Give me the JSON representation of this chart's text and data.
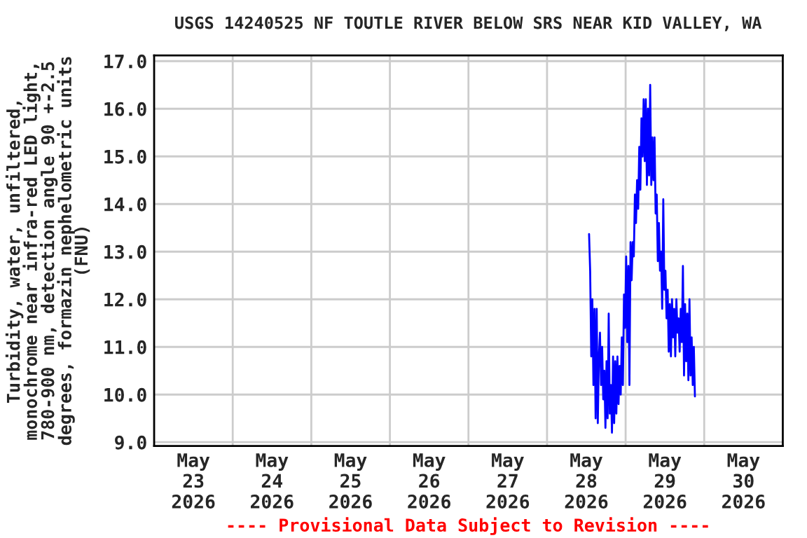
{
  "chart_data": {
    "type": "line",
    "title": "USGS 14240525 NF TOUTLE RIVER BELOW SRS NEAR KID VALLEY, WA",
    "ylabel": "Turbidity, water, unfiltered,\nmonochrome near infra-red LED light,\n780-900 nm, detection angle 90 +-2.5\ndegrees, formazin nephelometric units\n(FNU)",
    "annotations": [
      "---- Provisional Data Subject to Revision ----"
    ],
    "x": [
      "2026-05-28T12:50",
      "2026-05-28T13:10",
      "2026-05-28T13:30",
      "2026-05-28T13:50",
      "2026-05-28T14:10",
      "2026-05-28T14:30",
      "2026-05-28T14:50",
      "2026-05-28T15:10",
      "2026-05-28T15:30",
      "2026-05-28T15:50",
      "2026-05-28T16:10",
      "2026-05-28T16:30",
      "2026-05-28T16:50",
      "2026-05-28T17:10",
      "2026-05-28T17:30",
      "2026-05-28T17:50",
      "2026-05-28T18:10",
      "2026-05-28T18:30",
      "2026-05-28T18:50",
      "2026-05-28T19:10",
      "2026-05-28T19:30",
      "2026-05-28T19:50",
      "2026-05-28T20:10",
      "2026-05-28T20:30",
      "2026-05-28T20:50",
      "2026-05-28T21:10",
      "2026-05-28T21:30",
      "2026-05-28T21:50",
      "2026-05-28T22:10",
      "2026-05-28T22:30",
      "2026-05-28T22:50",
      "2026-05-28T23:10",
      "2026-05-28T23:30",
      "2026-05-28T23:50",
      "2026-05-29T00:10",
      "2026-05-29T00:30",
      "2026-05-29T00:50",
      "2026-05-29T01:10",
      "2026-05-29T01:30",
      "2026-05-29T01:50",
      "2026-05-29T02:10",
      "2026-05-29T02:30",
      "2026-05-29T02:50",
      "2026-05-29T03:10",
      "2026-05-29T03:30",
      "2026-05-29T03:50",
      "2026-05-29T04:10",
      "2026-05-29T04:30",
      "2026-05-29T04:50",
      "2026-05-29T05:10",
      "2026-05-29T05:30",
      "2026-05-29T05:50",
      "2026-05-29T06:10",
      "2026-05-29T06:30",
      "2026-05-29T06:50",
      "2026-05-29T07:10",
      "2026-05-29T07:30",
      "2026-05-29T07:50",
      "2026-05-29T08:10",
      "2026-05-29T08:30",
      "2026-05-29T08:50",
      "2026-05-29T09:10",
      "2026-05-29T09:30",
      "2026-05-29T09:50",
      "2026-05-29T10:10",
      "2026-05-29T10:30",
      "2026-05-29T10:50",
      "2026-05-29T11:10",
      "2026-05-29T11:30",
      "2026-05-29T11:50",
      "2026-05-29T12:10",
      "2026-05-29T12:30",
      "2026-05-29T12:50",
      "2026-05-29T13:10",
      "2026-05-29T13:30",
      "2026-05-29T13:50",
      "2026-05-29T14:10",
      "2026-05-29T14:30",
      "2026-05-29T14:50",
      "2026-05-29T15:10",
      "2026-05-29T15:30",
      "2026-05-29T15:50",
      "2026-05-29T16:10",
      "2026-05-29T16:30",
      "2026-05-29T16:50",
      "2026-05-29T17:10",
      "2026-05-29T17:30",
      "2026-05-29T17:50",
      "2026-05-29T18:10",
      "2026-05-29T18:30",
      "2026-05-29T18:50",
      "2026-05-29T19:10",
      "2026-05-29T19:30",
      "2026-05-29T19:50",
      "2026-05-29T20:10",
      "2026-05-29T20:30",
      "2026-05-29T20:50",
      "2026-05-29T21:10"
    ],
    "series": [
      {
        "color": "#0000ff",
        "values": [
          13.37,
          12.6,
          10.8,
          12.0,
          10.2,
          11.8,
          9.5,
          11.8,
          9.4,
          10.8,
          11.3,
          10.2,
          11.0,
          9.9,
          10.5,
          9.3,
          10.7,
          9.5,
          11.7,
          9.6,
          10.2,
          9.2,
          10.8,
          9.4,
          10.7,
          9.6,
          10.8,
          9.8,
          10.6,
          10.0,
          11.2,
          10.2,
          12.1,
          11.4,
          12.9,
          11.1,
          12.7,
          10.2,
          13.2,
          12.4,
          13.2,
          12.9,
          14.2,
          13.6,
          14.5,
          13.9,
          15.2,
          14.3,
          15.8,
          15.0,
          16.2,
          14.9,
          16.2,
          14.4,
          16.0,
          14.6,
          16.5,
          14.4,
          15.4,
          14.5,
          15.4,
          13.8,
          14.2,
          12.8,
          13.6,
          12.6,
          13.0,
          11.8,
          14.1,
          12.2,
          12.6,
          11.6,
          12.2,
          10.9,
          11.9,
          10.8,
          12.0,
          11.2,
          11.8,
          10.8,
          12.0,
          11.3,
          11.6,
          10.9,
          11.8,
          11.1,
          12.7,
          10.4,
          11.9,
          10.7,
          11.7,
          10.3,
          12.0,
          10.4,
          11.2,
          10.2,
          11.0,
          9.96
        ]
      }
    ],
    "xlim": [
      "2026-05-23",
      "2026-05-31"
    ],
    "xticks": [
      {
        "value": "2026-05-23T12:00",
        "label": "May\n23\n2026"
      },
      {
        "value": "2026-05-24T12:00",
        "label": "May\n24\n2026"
      },
      {
        "value": "2026-05-25T12:00",
        "label": "May\n25\n2026"
      },
      {
        "value": "2026-05-26T12:00",
        "label": "May\n26\n2026"
      },
      {
        "value": "2026-05-27T12:00",
        "label": "May\n27\n2026"
      },
      {
        "value": "2026-05-28T12:00",
        "label": "May\n28\n2026"
      },
      {
        "value": "2026-05-29T12:00",
        "label": "May\n29\n2026"
      },
      {
        "value": "2026-05-30T12:00",
        "label": "May\n30\n2026"
      },
      {
        "value": "2026-05-24",
        "label": null
      },
      {
        "value": "2026-05-25",
        "label": null
      },
      {
        "value": "2026-05-26",
        "label": null
      },
      {
        "value": "2026-05-27",
        "label": null
      },
      {
        "value": "2026-05-28",
        "label": null
      },
      {
        "value": "2026-05-29",
        "label": null
      },
      {
        "value": "2026-05-30",
        "label": null
      }
    ],
    "ylim": [
      8.92,
      17.12
    ],
    "yticks": [
      {
        "value": 9,
        "label": "9.0"
      },
      {
        "value": 10,
        "label": "10.0"
      },
      {
        "value": 11,
        "label": "11.0"
      },
      {
        "value": 12,
        "label": "12.0"
      },
      {
        "value": 13,
        "label": "13.0"
      },
      {
        "value": 14,
        "label": "14.0"
      },
      {
        "value": 15,
        "label": "15.0"
      },
      {
        "value": 16,
        "label": "16.0"
      },
      {
        "value": 17,
        "label": "17.0"
      }
    ],
    "grid": true,
    "legend": false,
    "marker": "none",
    "line_style": "solid"
  }
}
